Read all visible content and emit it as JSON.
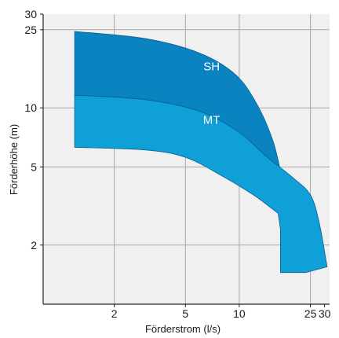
{
  "chart_data": {
    "type": "area",
    "xlabel": "Förderstrom (l/s)",
    "ylabel": "Förderhöhe (m)",
    "x_scale": "log",
    "y_scale": "log",
    "xlim": [
      0.8,
      32
    ],
    "ylim": [
      1,
      30
    ],
    "x_ticks": [
      2,
      5,
      10,
      25,
      30
    ],
    "y_ticks": [
      2,
      5,
      10,
      25,
      30
    ],
    "grid": true,
    "series": [
      {
        "name": "SH",
        "color": "#0a84c0",
        "upper": [
          [
            1.2,
            24.5
          ],
          [
            3,
            22.5
          ],
          [
            6,
            19
          ],
          [
            9.5,
            14.8
          ],
          [
            12.5,
            10.5
          ],
          [
            15.5,
            6.7
          ],
          [
            17.5,
            4.2
          ]
        ],
        "lower": [
          [
            1.2,
            11.6
          ],
          [
            3,
            11
          ],
          [
            6,
            9.6
          ],
          [
            10,
            7.5
          ],
          [
            14,
            5.6
          ],
          [
            17.5,
            4.2
          ]
        ]
      },
      {
        "name": "MT",
        "color": "#0ea0d6",
        "upper": [
          [
            1.2,
            11.6
          ],
          [
            3,
            11
          ],
          [
            6,
            9.6
          ],
          [
            10,
            7.5
          ],
          [
            14,
            5.7
          ],
          [
            20,
            4.4
          ],
          [
            25,
            3.6
          ],
          [
            28,
            2.6
          ],
          [
            31,
            1.55
          ]
        ],
        "lower": [
          [
            1.2,
            6.3
          ],
          [
            3,
            6.1
          ],
          [
            5,
            5.6
          ],
          [
            8,
            4.5
          ],
          [
            12,
            3.6
          ],
          [
            15,
            3.1
          ],
          [
            16.5,
            2.9
          ],
          [
            17,
            2.4
          ],
          [
            17,
            1.45
          ],
          [
            23.5,
            1.45
          ],
          [
            31,
            1.55
          ]
        ]
      }
    ],
    "annotations": [
      {
        "text": "SH",
        "x": 7,
        "y": 15.5
      },
      {
        "text": "MT",
        "x": 7,
        "y": 8.3
      }
    ]
  }
}
